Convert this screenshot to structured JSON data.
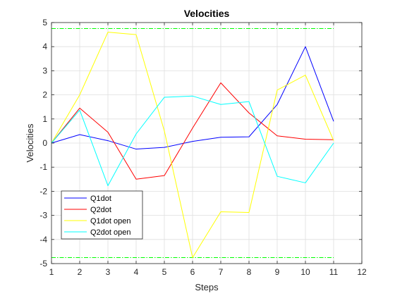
{
  "chart_data": {
    "type": "line",
    "title": "Velocities",
    "xlabel": "Steps",
    "ylabel": "Velocities",
    "xlim": [
      1,
      12
    ],
    "ylim": [
      -5,
      5
    ],
    "xticks": [
      1,
      2,
      3,
      4,
      5,
      6,
      7,
      8,
      9,
      10,
      11,
      12
    ],
    "yticks": [
      -5,
      -4,
      -3,
      -2,
      -1,
      0,
      1,
      2,
      3,
      4,
      5
    ],
    "grid": true,
    "legend_location": "bottom-left",
    "x": [
      1,
      2,
      3,
      4,
      5,
      6,
      7,
      8,
      9,
      10,
      11
    ],
    "series": [
      {
        "name": "Q1dot",
        "color": "#0000ff",
        "values": [
          0,
          0.35,
          0.1,
          -0.25,
          -0.18,
          0.07,
          0.24,
          0.26,
          1.6,
          4.0,
          0.9
        ]
      },
      {
        "name": "Q2dot",
        "color": "#ff0000",
        "values": [
          0,
          1.45,
          0.45,
          -1.5,
          -1.35,
          0.62,
          2.5,
          1.25,
          0.3,
          0.16,
          0.14
        ]
      },
      {
        "name": "Q1dot open",
        "color": "#ffff00",
        "values": [
          0,
          2.0,
          4.6,
          4.5,
          0.5,
          -4.75,
          -2.85,
          -2.88,
          2.2,
          2.82,
          0.1
        ]
      },
      {
        "name": "Q2dot open",
        "color": "#00ffff",
        "values": [
          0,
          1.37,
          -1.77,
          0.38,
          1.9,
          1.95,
          1.6,
          1.72,
          -1.38,
          -1.65,
          0.0
        ]
      }
    ],
    "reference_lines": [
      {
        "y": 4.75,
        "color": "#00ff00",
        "style": "dash-dot"
      },
      {
        "y": -4.75,
        "color": "#00ff00",
        "style": "dash-dot"
      }
    ]
  }
}
